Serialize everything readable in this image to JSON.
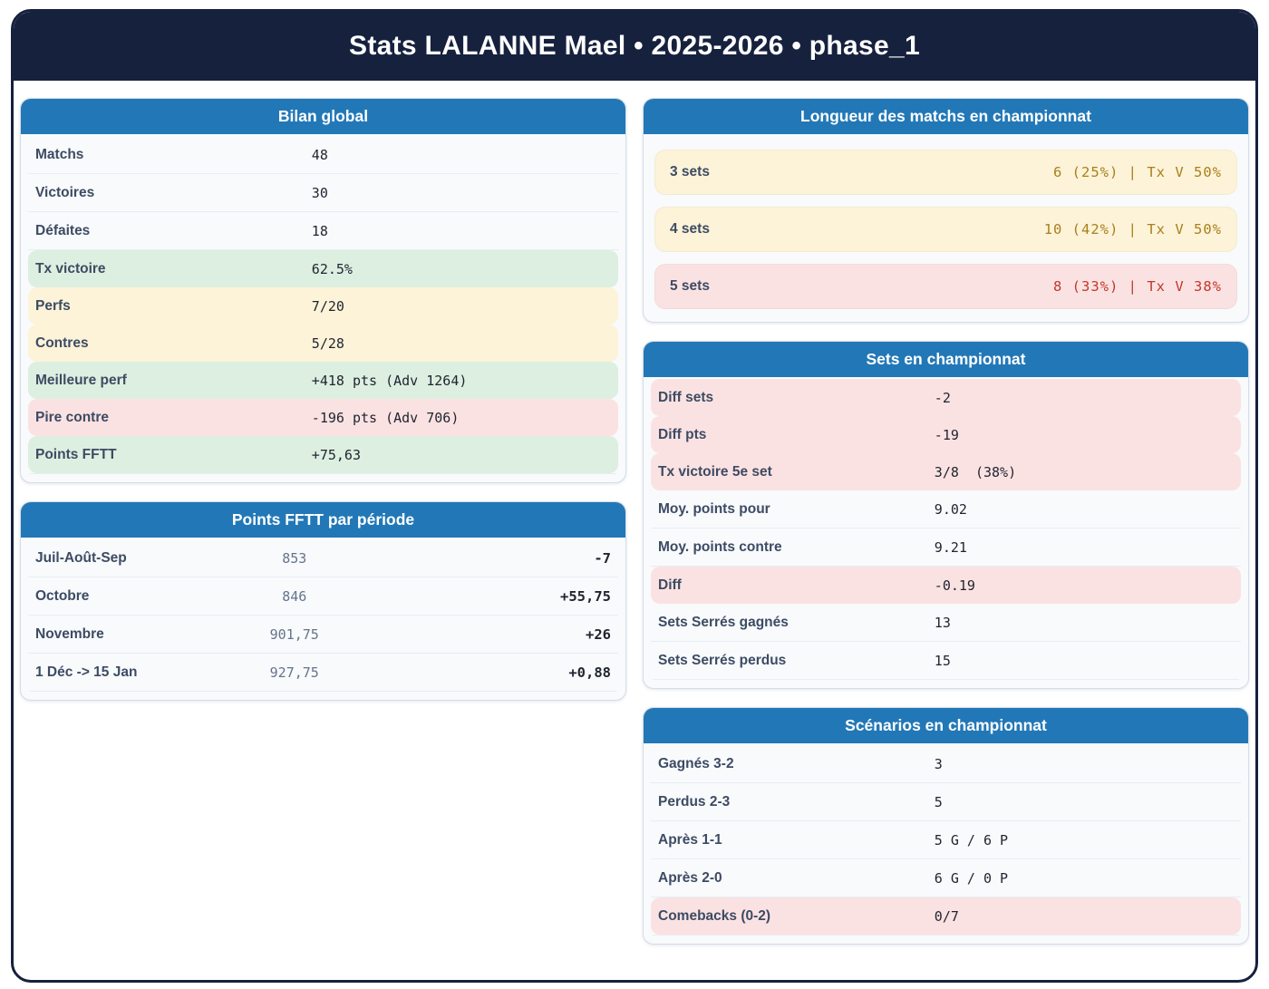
{
  "header": {
    "title": "Stats LALANNE Mael • 2025-2026 • phase_1"
  },
  "colors": {
    "page_border": "#16213e",
    "card_header_blue": "#2278b7",
    "green_bg": "#ddefe0",
    "yellow_bg": "#fcf3d8",
    "pink_bg": "#fbe2e2",
    "amber_text": "#a97f1c",
    "red_text": "#c0392b"
  },
  "cards": {
    "bilan": {
      "title": "Bilan global",
      "rows": [
        {
          "label": "Matchs",
          "value": "48",
          "tint": "none"
        },
        {
          "label": "Victoires",
          "value": "30",
          "tint": "none"
        },
        {
          "label": "Défaites",
          "value": "18",
          "tint": "none"
        },
        {
          "label": "Tx victoire",
          "value": "62.5%",
          "tint": "green"
        },
        {
          "label": "Perfs",
          "value": "7/20",
          "tint": "yellow"
        },
        {
          "label": "Contres",
          "value": "5/28",
          "tint": "yellow"
        },
        {
          "label": "Meilleure perf",
          "value": "+418 pts (Adv 1264)",
          "tint": "green"
        },
        {
          "label": "Pire contre",
          "value": "-196 pts (Adv 706)",
          "tint": "pink"
        },
        {
          "label": "Points FFTT",
          "value": "+75,63",
          "tint": "green"
        }
      ]
    },
    "points_periode": {
      "title": "Points FFTT par période",
      "rows": [
        {
          "label": "Juil-Août-Sep",
          "points": "853",
          "delta": "-7"
        },
        {
          "label": "Octobre",
          "points": "846",
          "delta": "+55,75"
        },
        {
          "label": "Novembre",
          "points": "901,75",
          "delta": "+26"
        },
        {
          "label": "1 Déc -> 15 Jan",
          "points": "927,75",
          "delta": "+0,88"
        }
      ]
    },
    "longueur": {
      "title": "Longueur des matchs en championnat",
      "rows": [
        {
          "label": "3 sets",
          "value": "6 (25%) | Tx V 50%",
          "tint": "yellow",
          "value_color": "amber"
        },
        {
          "label": "4 sets",
          "value": "10 (42%) | Tx V 50%",
          "tint": "yellow",
          "value_color": "amber"
        },
        {
          "label": "5 sets",
          "value": "8 (33%) | Tx V 38%",
          "tint": "pink",
          "value_color": "red"
        }
      ]
    },
    "sets": {
      "title": "Sets en championnat",
      "rows": [
        {
          "label": "Diff sets",
          "value": "-2",
          "tint": "pink"
        },
        {
          "label": "Diff pts",
          "value": "-19",
          "tint": "pink"
        },
        {
          "label": "Tx victoire 5e set",
          "value": "3/8  (38%)",
          "tint": "pink"
        },
        {
          "label": "Moy. points pour",
          "value": "9.02",
          "tint": "none"
        },
        {
          "label": "Moy. points contre",
          "value": "9.21",
          "tint": "none"
        },
        {
          "label": "Diff",
          "value": "-0.19",
          "tint": "pink"
        },
        {
          "label": "Sets Serrés gagnés",
          "value": "13",
          "tint": "none"
        },
        {
          "label": "Sets Serrés perdus",
          "value": "15",
          "tint": "none"
        }
      ]
    },
    "scenarios": {
      "title": "Scénarios en championnat",
      "rows": [
        {
          "label": "Gagnés 3-2",
          "value": "3",
          "tint": "none"
        },
        {
          "label": "Perdus 2-3",
          "value": "5",
          "tint": "none"
        },
        {
          "label": "Après 1-1",
          "value": "5 G / 6 P",
          "tint": "none"
        },
        {
          "label": "Après 2-0",
          "value": "6 G / 0 P",
          "tint": "none"
        },
        {
          "label": "Comebacks (0-2)",
          "value": "0/7",
          "tint": "pink"
        }
      ]
    }
  }
}
